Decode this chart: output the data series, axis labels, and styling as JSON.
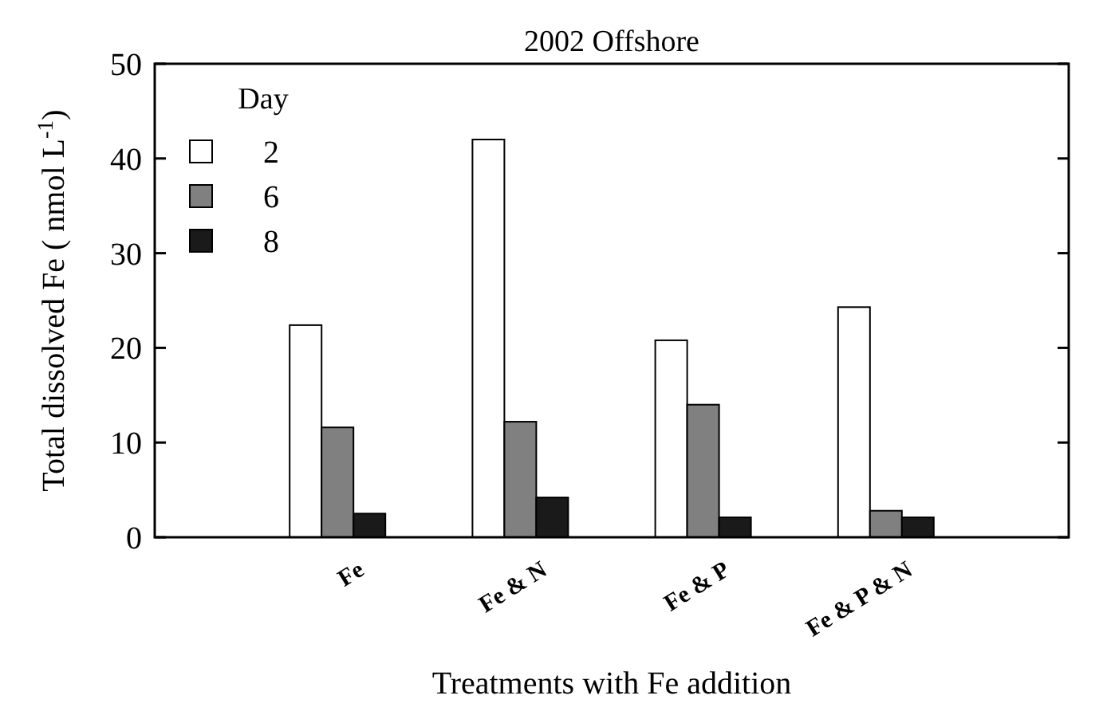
{
  "chart_data": {
    "type": "bar",
    "title": "2002 Offshore",
    "xlabel": "Treatments with Fe addition",
    "ylabel": "Total dissolved Fe ( nmol L$^{-1}$)",
    "legend_title": "Day",
    "categories": [
      "Fe",
      "Fe & N",
      "Fe & P",
      "Fe & P & N"
    ],
    "series": [
      {
        "name": "2",
        "color": "#ffffff",
        "values": [
          22.4,
          42,
          20.8,
          24.3
        ]
      },
      {
        "name": "6",
        "color": "#808080",
        "values": [
          11.6,
          12.2,
          14,
          2.8
        ]
      },
      {
        "name": "8",
        "color": "#1a1a1a",
        "values": [
          2.5,
          4.2,
          2.1,
          2.1
        ]
      }
    ],
    "ylim": [
      0,
      50
    ],
    "yticks": [
      0,
      10,
      20,
      30,
      40,
      50
    ],
    "grid": false,
    "legend": "top left"
  }
}
